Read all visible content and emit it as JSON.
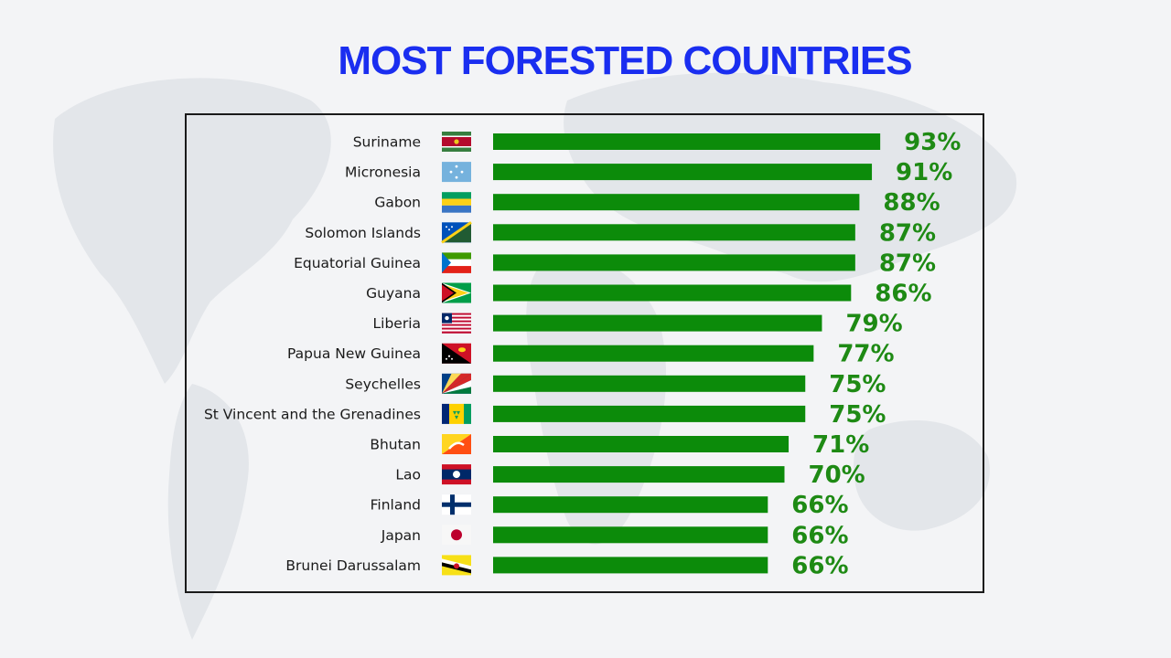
{
  "title": "MOST FORESTED COUNTRIES",
  "colors": {
    "title": "#1a2ef0",
    "bar": "#0c8b0a",
    "value": "#1e8a14",
    "background": "#f3f4f6"
  },
  "chart_data": {
    "type": "bar",
    "orientation": "horizontal",
    "title": "MOST FORESTED COUNTRIES",
    "categories": [
      "Suriname",
      "Micronesia",
      "Gabon",
      "Solomon Islands",
      "Equatorial Guinea",
      "Guyana",
      "Liberia",
      "Papua New Guinea",
      "Seychelles",
      "St Vincent and the Grenadines",
      "Bhutan",
      "Lao",
      "Finland",
      "Japan",
      "Brunei Darussalam"
    ],
    "values": [
      93,
      91,
      88,
      87,
      87,
      86,
      79,
      77,
      75,
      75,
      71,
      70,
      66,
      66,
      66
    ],
    "value_labels": [
      "93%",
      "91%",
      "88%",
      "87%",
      "87%",
      "86%",
      "79%",
      "77%",
      "75%",
      "75%",
      "71%",
      "70%",
      "66%",
      "66%",
      "66%"
    ],
    "flag_icons": [
      "suriname-flag-icon",
      "micronesia-flag-icon",
      "gabon-flag-icon",
      "solomon-islands-flag-icon",
      "equatorial-guinea-flag-icon",
      "guyana-flag-icon",
      "liberia-flag-icon",
      "papua-new-guinea-flag-icon",
      "seychelles-flag-icon",
      "st-vincent-flag-icon",
      "bhutan-flag-icon",
      "lao-flag-icon",
      "finland-flag-icon",
      "japan-flag-icon",
      "brunei-flag-icon"
    ],
    "unit": "%",
    "grid": false,
    "legend": "none"
  }
}
